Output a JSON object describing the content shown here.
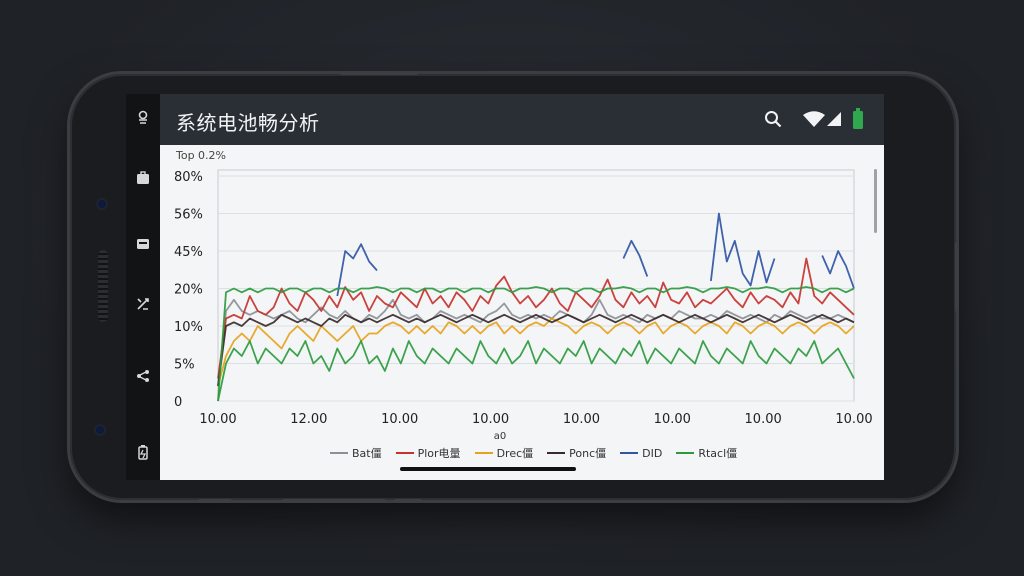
{
  "app": {
    "title": "系统电池畅分析"
  },
  "status_icons": {
    "search": "search-icon",
    "wifi": "wifi-icon",
    "signal": "signal-icon",
    "battery": "battery-icon",
    "battery_color": "#2fa84f"
  },
  "nav_icons": [
    "pin-icon",
    "briefcase-icon",
    "card-icon",
    "tools-icon",
    "share-icon",
    "battery-swap-icon"
  ],
  "chart_data": {
    "type": "line",
    "top_label": "Top  0.2%",
    "y_tick_labels": [
      "0",
      "5%",
      "10%",
      "20%",
      "45%",
      "56%",
      "80%"
    ],
    "x_tick_labels": [
      "10.00",
      "12.00",
      "10.00",
      "10.00",
      "10.00",
      "10.00",
      "10.00",
      "10.00"
    ],
    "x_axis_caption": "a0",
    "xlabel": "",
    "ylabel": "",
    "grid": true,
    "legend_position": "bottom",
    "series": [
      {
        "name": "Bat僵",
        "color": "#8a9096",
        "values": [
          2,
          14,
          17,
          14,
          13,
          14,
          13,
          12,
          13,
          14,
          12,
          11,
          13,
          15,
          13,
          12,
          14,
          12,
          11,
          13,
          12,
          14,
          17,
          13,
          12,
          13,
          11,
          12,
          14,
          13,
          12,
          13,
          12,
          11,
          13,
          14,
          16,
          13,
          12,
          13,
          12,
          13,
          12,
          14,
          13,
          12,
          11,
          13,
          17,
          13,
          12,
          13,
          12,
          11,
          13,
          12,
          13,
          12,
          14,
          13,
          12,
          12,
          13,
          12,
          14,
          13,
          12,
          13,
          12,
          11,
          13,
          12,
          14,
          13,
          12,
          13,
          12,
          12,
          13,
          12,
          11
        ]
      },
      {
        "name": "Plor电量",
        "color": "#c6322e",
        "values": [
          3,
          12,
          13,
          12,
          18,
          14,
          13,
          15,
          20,
          16,
          14,
          19,
          17,
          14,
          18,
          15,
          21,
          17,
          19,
          14,
          18,
          16,
          15,
          19,
          17,
          15,
          20,
          16,
          18,
          15,
          19,
          17,
          14,
          18,
          16,
          22,
          28,
          19,
          16,
          18,
          15,
          17,
          20,
          16,
          14,
          19,
          17,
          15,
          18,
          26,
          17,
          15,
          19,
          16,
          18,
          15,
          24,
          17,
          16,
          19,
          15,
          17,
          16,
          18,
          20,
          17,
          15,
          19,
          16,
          18,
          17,
          15,
          19,
          16,
          40,
          18,
          16,
          19,
          17,
          15,
          13
        ]
      },
      {
        "name": "Drec僵",
        "color": "#e6a21c",
        "values": [
          2,
          6,
          8,
          9,
          8,
          10,
          9,
          8,
          7,
          9,
          10,
          9,
          8,
          10,
          9,
          8,
          9,
          10,
          8,
          9,
          9,
          10,
          11,
          10,
          9,
          10,
          9,
          10,
          9,
          11,
          10,
          9,
          10,
          9,
          10,
          11,
          9,
          10,
          9,
          10,
          11,
          10,
          12,
          11,
          10,
          9,
          10,
          11,
          10,
          9,
          10,
          11,
          10,
          9,
          10,
          11,
          9,
          10,
          11,
          10,
          9,
          10,
          11,
          10,
          9,
          11,
          10,
          9,
          10,
          11,
          10,
          9,
          10,
          11,
          10,
          9,
          10,
          11,
          10,
          9,
          10
        ]
      },
      {
        "name": "Ponc僵",
        "color": "#3a2a2a",
        "values": [
          2,
          10,
          11,
          10,
          12,
          11,
          10,
          11,
          13,
          12,
          11,
          12,
          11,
          10,
          12,
          11,
          13,
          12,
          11,
          12,
          11,
          12,
          13,
          12,
          11,
          12,
          11,
          12,
          13,
          12,
          11,
          12,
          13,
          12,
          11,
          12,
          13,
          12,
          11,
          12,
          13,
          12,
          11,
          12,
          13,
          12,
          11,
          12,
          13,
          12,
          11,
          12,
          13,
          12,
          11,
          12,
          13,
          12,
          11,
          12,
          13,
          12,
          11,
          12,
          13,
          12,
          11,
          12,
          13,
          12,
          11,
          12,
          13,
          12,
          11,
          12,
          13,
          12,
          11,
          12,
          11
        ]
      },
      {
        "name": "DID",
        "color": "#2f55a4",
        "values": [
          null,
          null,
          null,
          null,
          null,
          null,
          null,
          null,
          null,
          null,
          null,
          null,
          null,
          null,
          null,
          18,
          45,
          40,
          47,
          38,
          32,
          null,
          null,
          null,
          null,
          null,
          null,
          null,
          null,
          null,
          null,
          null,
          null,
          null,
          null,
          null,
          null,
          null,
          null,
          null,
          null,
          null,
          null,
          null,
          null,
          null,
          null,
          null,
          null,
          null,
          null,
          40,
          48,
          42,
          28,
          null,
          null,
          null,
          null,
          null,
          null,
          null,
          25,
          56,
          38,
          48,
          30,
          22,
          45,
          24,
          40,
          null,
          null,
          null,
          null,
          null,
          42,
          30,
          45,
          35,
          20
        ]
      },
      {
        "name": "Rtacl僵",
        "color": "#2b9a3e",
        "values": [
          0,
          19,
          20,
          19,
          20,
          19,
          20,
          20,
          19,
          20,
          20,
          19,
          20,
          20,
          19,
          20,
          20,
          19,
          20,
          20,
          21,
          20,
          19,
          20,
          20,
          19,
          20,
          20,
          19,
          20,
          20,
          19,
          20,
          20,
          19,
          20,
          20,
          19,
          20,
          20,
          21,
          20,
          19,
          20,
          20,
          19,
          20,
          20,
          19,
          20,
          20,
          21,
          20,
          19,
          20,
          20,
          19,
          20,
          20,
          21,
          20,
          19,
          20,
          20,
          21,
          20,
          19,
          20,
          20,
          21,
          20,
          19,
          20,
          20,
          21,
          20,
          19,
          20,
          20,
          19,
          20
        ]
      },
      {
        "name": "",
        "color": "#2b9a3e",
        "values": [
          0,
          5,
          7,
          6,
          8,
          5,
          7,
          6,
          5,
          7,
          6,
          8,
          5,
          6,
          4,
          7,
          5,
          6,
          8,
          5,
          6,
          4,
          7,
          5,
          8,
          6,
          5,
          7,
          6,
          5,
          7,
          6,
          5,
          8,
          6,
          5,
          7,
          5,
          6,
          8,
          5,
          7,
          6,
          5,
          7,
          6,
          8,
          5,
          7,
          6,
          5,
          7,
          6,
          8,
          5,
          7,
          6,
          5,
          7,
          6,
          5,
          8,
          6,
          5,
          7,
          6,
          5,
          8,
          6,
          5,
          7,
          6,
          5,
          7,
          6,
          8,
          5,
          6,
          7,
          5,
          3
        ]
      }
    ]
  }
}
